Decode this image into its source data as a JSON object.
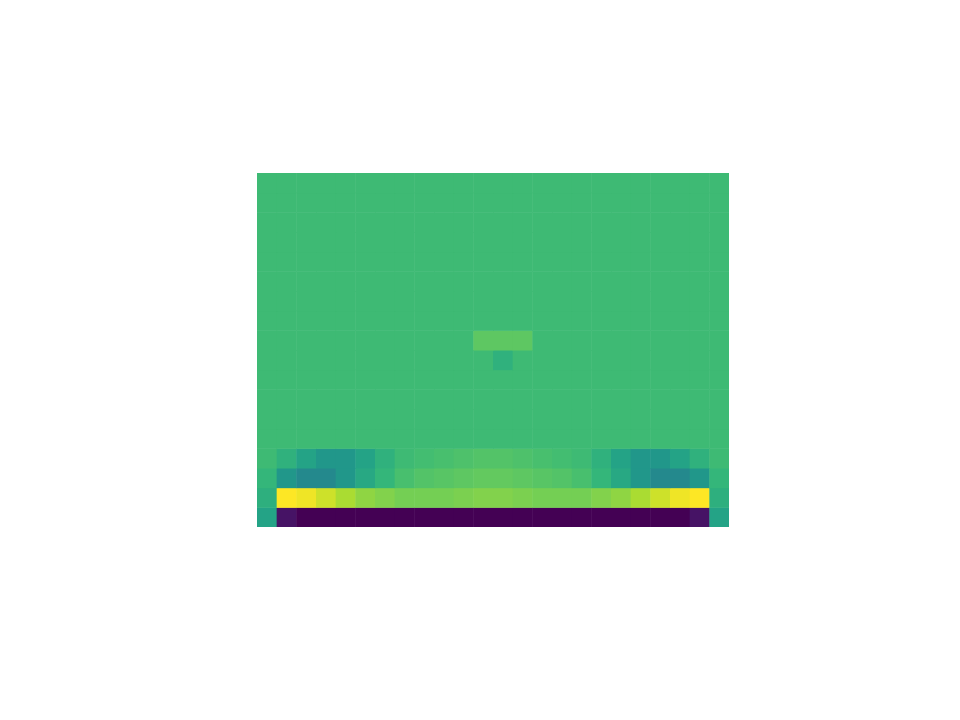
{
  "chart_data": {
    "type": "heatmap",
    "xlim": [
      0,
      24
    ],
    "ylim": [
      0,
      18
    ],
    "tick_labels": false,
    "grid": false,
    "cells": [
      [
        0.6,
        0.1,
        0.05,
        0.05,
        0.05,
        0.05,
        0.05,
        0.05,
        0.05,
        0.05,
        0.05,
        0.05,
        0.05,
        0.05,
        0.05,
        0.05,
        0.05,
        0.05,
        0.05,
        0.05,
        0.05,
        0.05,
        0.1,
        0.6
      ],
      [
        0.65,
        1.0,
        0.98,
        0.93,
        0.88,
        0.84,
        0.82,
        0.8,
        0.8,
        0.8,
        0.81,
        0.82,
        0.82,
        0.81,
        0.8,
        0.8,
        0.8,
        0.82,
        0.84,
        0.88,
        0.93,
        0.98,
        1.0,
        0.65
      ],
      [
        0.68,
        0.55,
        0.5,
        0.5,
        0.55,
        0.62,
        0.68,
        0.72,
        0.74,
        0.75,
        0.76,
        0.77,
        0.77,
        0.76,
        0.75,
        0.74,
        0.72,
        0.68,
        0.62,
        0.55,
        0.5,
        0.5,
        0.55,
        0.68
      ],
      [
        0.7,
        0.66,
        0.6,
        0.55,
        0.55,
        0.6,
        0.66,
        0.7,
        0.71,
        0.72,
        0.73,
        0.74,
        0.74,
        0.73,
        0.72,
        0.71,
        0.7,
        0.66,
        0.6,
        0.55,
        0.55,
        0.6,
        0.66,
        0.7
      ],
      [
        0.7,
        0.7,
        0.7,
        0.7,
        0.7,
        0.7,
        0.7,
        0.7,
        0.7,
        0.7,
        0.7,
        0.7,
        0.7,
        0.7,
        0.7,
        0.7,
        0.7,
        0.7,
        0.7,
        0.7,
        0.7,
        0.7,
        0.7,
        0.7
      ],
      [
        0.7,
        0.7,
        0.7,
        0.7,
        0.7,
        0.7,
        0.7,
        0.7,
        0.7,
        0.7,
        0.7,
        0.7,
        0.7,
        0.7,
        0.7,
        0.7,
        0.7,
        0.7,
        0.7,
        0.7,
        0.7,
        0.7,
        0.7,
        0.7
      ],
      [
        0.7,
        0.7,
        0.7,
        0.7,
        0.7,
        0.7,
        0.7,
        0.7,
        0.7,
        0.7,
        0.7,
        0.7,
        0.7,
        0.7,
        0.7,
        0.7,
        0.7,
        0.7,
        0.7,
        0.7,
        0.7,
        0.7,
        0.7,
        0.7
      ],
      [
        0.7,
        0.7,
        0.7,
        0.7,
        0.7,
        0.7,
        0.7,
        0.7,
        0.7,
        0.7,
        0.7,
        0.7,
        0.7,
        0.7,
        0.7,
        0.7,
        0.7,
        0.7,
        0.7,
        0.7,
        0.7,
        0.7,
        0.7,
        0.7
      ],
      [
        0.7,
        0.7,
        0.7,
        0.7,
        0.7,
        0.7,
        0.7,
        0.7,
        0.7,
        0.7,
        0.7,
        0.7,
        0.66,
        0.7,
        0.7,
        0.7,
        0.7,
        0.7,
        0.7,
        0.7,
        0.7,
        0.7,
        0.7,
        0.7
      ],
      [
        0.7,
        0.7,
        0.7,
        0.7,
        0.7,
        0.7,
        0.7,
        0.7,
        0.7,
        0.7,
        0.7,
        0.76,
        0.76,
        0.76,
        0.7,
        0.7,
        0.7,
        0.7,
        0.7,
        0.7,
        0.7,
        0.7,
        0.7,
        0.7
      ],
      [
        0.7,
        0.7,
        0.7,
        0.7,
        0.7,
        0.7,
        0.7,
        0.7,
        0.7,
        0.7,
        0.7,
        0.7,
        0.7,
        0.7,
        0.7,
        0.7,
        0.7,
        0.7,
        0.7,
        0.7,
        0.7,
        0.7,
        0.7,
        0.7
      ],
      [
        0.7,
        0.7,
        0.7,
        0.7,
        0.7,
        0.7,
        0.7,
        0.7,
        0.7,
        0.7,
        0.7,
        0.7,
        0.7,
        0.7,
        0.7,
        0.7,
        0.7,
        0.7,
        0.7,
        0.7,
        0.7,
        0.7,
        0.7,
        0.7
      ],
      [
        0.7,
        0.7,
        0.7,
        0.7,
        0.7,
        0.7,
        0.7,
        0.7,
        0.7,
        0.7,
        0.7,
        0.7,
        0.7,
        0.7,
        0.7,
        0.7,
        0.7,
        0.7,
        0.7,
        0.7,
        0.7,
        0.7,
        0.7,
        0.7
      ],
      [
        0.7,
        0.7,
        0.7,
        0.7,
        0.7,
        0.7,
        0.7,
        0.7,
        0.7,
        0.7,
        0.7,
        0.7,
        0.7,
        0.7,
        0.7,
        0.7,
        0.7,
        0.7,
        0.7,
        0.7,
        0.7,
        0.7,
        0.7,
        0.7
      ],
      [
        0.7,
        0.7,
        0.7,
        0.7,
        0.7,
        0.7,
        0.7,
        0.7,
        0.7,
        0.7,
        0.7,
        0.7,
        0.7,
        0.7,
        0.7,
        0.7,
        0.7,
        0.7,
        0.7,
        0.7,
        0.7,
        0.7,
        0.7,
        0.7
      ],
      [
        0.7,
        0.7,
        0.7,
        0.7,
        0.7,
        0.7,
        0.7,
        0.7,
        0.7,
        0.7,
        0.7,
        0.7,
        0.7,
        0.7,
        0.7,
        0.7,
        0.7,
        0.7,
        0.7,
        0.7,
        0.7,
        0.7,
        0.7,
        0.7
      ],
      [
        0.7,
        0.7,
        0.7,
        0.7,
        0.7,
        0.7,
        0.7,
        0.7,
        0.7,
        0.7,
        0.7,
        0.7,
        0.7,
        0.7,
        0.7,
        0.7,
        0.7,
        0.7,
        0.7,
        0.7,
        0.7,
        0.7,
        0.7,
        0.7
      ],
      [
        0.7,
        0.7,
        0.7,
        0.7,
        0.7,
        0.7,
        0.7,
        0.7,
        0.7,
        0.7,
        0.7,
        0.7,
        0.7,
        0.7,
        0.7,
        0.7,
        0.7,
        0.7,
        0.7,
        0.7,
        0.7,
        0.7,
        0.7,
        0.7
      ]
    ]
  }
}
